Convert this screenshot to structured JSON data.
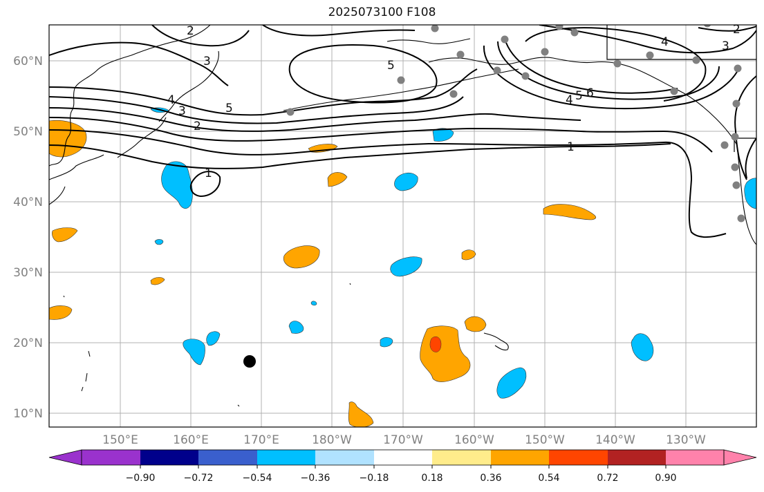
{
  "title": "2025073100 F108",
  "map": {
    "lat_ticks": [
      "10°N",
      "20°N",
      "30°N",
      "40°N",
      "50°N",
      "60°N"
    ],
    "lon_ticks": [
      "150°E",
      "160°E",
      "170°E",
      "180°W",
      "170°W",
      "160°W",
      "150°W",
      "140°W",
      "130°W"
    ],
    "contour_labels": [
      "1",
      "1",
      "2",
      "3",
      "3",
      "4",
      "4",
      "5",
      "5",
      "6",
      "2",
      "3",
      "4",
      "5",
      "2"
    ]
  },
  "colorbar": {
    "ticks": [
      "−0.90",
      "−0.72",
      "−0.54",
      "−0.36",
      "−0.18",
      "0.18",
      "0.36",
      "0.54",
      "0.72",
      "0.90"
    ],
    "colors": [
      "#9a32cd",
      "#00008b",
      "#3a5fcd",
      "#00bfff",
      "#b0e2ff",
      "#ffffff",
      "#ffec8b",
      "#ffa500",
      "#ff4500",
      "#b22222",
      "#ff82ab"
    ]
  },
  "colors": {
    "positive_anomaly": "#ffa500",
    "strong_positive": "#ff4500",
    "negative_anomaly": "#00bfff",
    "grid": "#b0b0b0",
    "station_marker": "#808080"
  }
}
